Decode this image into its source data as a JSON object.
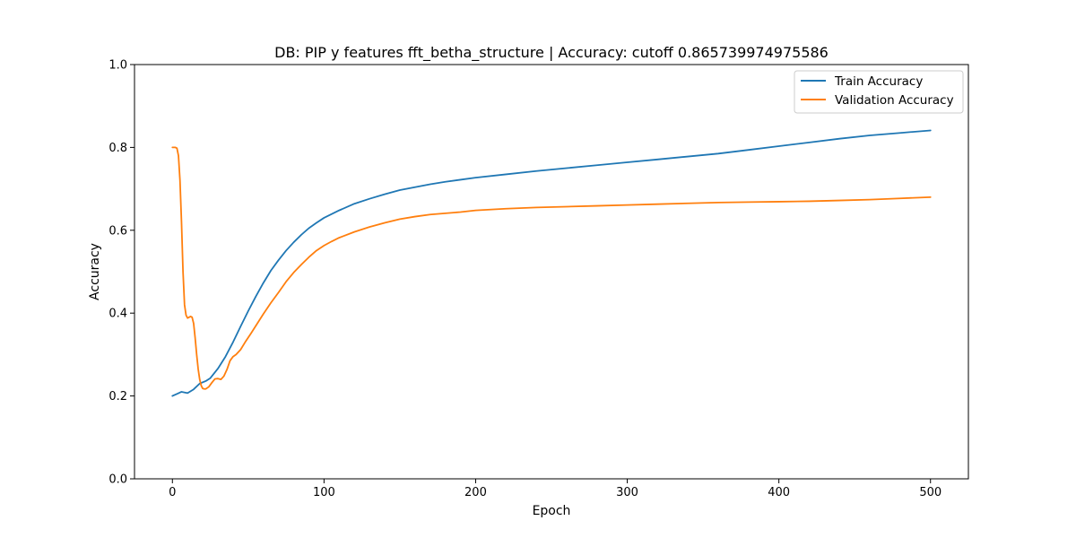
{
  "chart_data": {
    "type": "line",
    "title": "DB: PIP y features fft_betha_structure | Accuracy: cutoff 0.865739974975586",
    "xlabel": "Epoch",
    "ylabel": "Accuracy",
    "xlim": [
      -25,
      525
    ],
    "ylim": [
      0.0,
      1.0
    ],
    "xticks": [
      0,
      100,
      200,
      300,
      400,
      500
    ],
    "yticks": [
      0.0,
      0.2,
      0.4,
      0.6,
      0.8,
      1.0
    ],
    "xtick_labels": [
      "0",
      "100",
      "200",
      "300",
      "400",
      "500"
    ],
    "ytick_labels": [
      "0.0",
      "0.2",
      "0.4",
      "0.6",
      "0.8",
      "1.0"
    ],
    "grid": false,
    "legend_position": "top-right",
    "series": [
      {
        "name": "Train Accuracy",
        "color": "#1f77b4",
        "x": [
          0,
          3,
          6,
          10,
          14,
          18,
          22,
          25,
          30,
          35,
          40,
          45,
          50,
          55,
          60,
          65,
          70,
          75,
          80,
          85,
          90,
          95,
          100,
          110,
          120,
          130,
          140,
          150,
          160,
          170,
          180,
          190,
          200,
          220,
          240,
          260,
          280,
          300,
          320,
          340,
          360,
          380,
          400,
          420,
          440,
          460,
          480,
          500
        ],
        "values": [
          0.2,
          0.205,
          0.21,
          0.207,
          0.216,
          0.23,
          0.236,
          0.243,
          0.266,
          0.295,
          0.33,
          0.368,
          0.405,
          0.44,
          0.473,
          0.503,
          0.528,
          0.551,
          0.571,
          0.589,
          0.605,
          0.618,
          0.63,
          0.648,
          0.664,
          0.676,
          0.687,
          0.697,
          0.704,
          0.711,
          0.717,
          0.722,
          0.727,
          0.735,
          0.743,
          0.75,
          0.757,
          0.764,
          0.771,
          0.778,
          0.785,
          0.794,
          0.803,
          0.812,
          0.821,
          0.829,
          0.835,
          0.841
        ]
      },
      {
        "name": "Validation Accuracy",
        "color": "#ff7f0e",
        "x": [
          0,
          2,
          3,
          4,
          5,
          6,
          7,
          8,
          9,
          10,
          11,
          12,
          13,
          14,
          15,
          16,
          17,
          18,
          19,
          20,
          21,
          22,
          24,
          26,
          28,
          30,
          32,
          34,
          36,
          38,
          40,
          42,
          45,
          48,
          52,
          56,
          60,
          65,
          70,
          75,
          80,
          85,
          90,
          95,
          100,
          105,
          110,
          120,
          130,
          140,
          150,
          160,
          170,
          180,
          190,
          200,
          220,
          240,
          260,
          280,
          300,
          320,
          340,
          360,
          380,
          400,
          420,
          440,
          460,
          480,
          500
        ],
        "values": [
          0.8,
          0.8,
          0.798,
          0.78,
          0.72,
          0.62,
          0.5,
          0.42,
          0.395,
          0.388,
          0.39,
          0.392,
          0.39,
          0.375,
          0.34,
          0.3,
          0.265,
          0.24,
          0.225,
          0.218,
          0.217,
          0.217,
          0.222,
          0.232,
          0.241,
          0.242,
          0.24,
          0.248,
          0.264,
          0.285,
          0.295,
          0.3,
          0.312,
          0.33,
          0.352,
          0.375,
          0.398,
          0.425,
          0.45,
          0.476,
          0.498,
          0.517,
          0.535,
          0.551,
          0.563,
          0.573,
          0.582,
          0.596,
          0.608,
          0.618,
          0.627,
          0.633,
          0.638,
          0.641,
          0.644,
          0.648,
          0.652,
          0.655,
          0.657,
          0.659,
          0.661,
          0.663,
          0.665,
          0.667,
          0.668,
          0.669,
          0.67,
          0.672,
          0.674,
          0.677,
          0.68
        ]
      }
    ]
  }
}
